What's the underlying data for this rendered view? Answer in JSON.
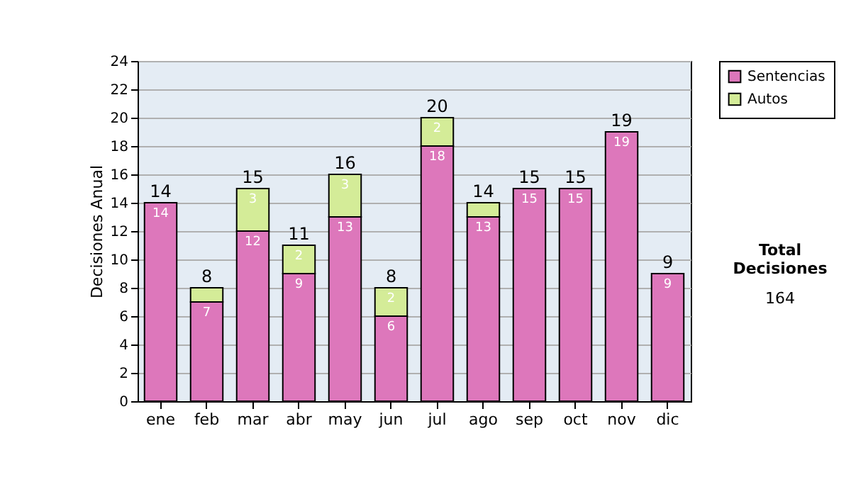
{
  "chart_data": {
    "type": "bar",
    "stacked": true,
    "categories": [
      "ene",
      "feb",
      "mar",
      "abr",
      "may",
      "jun",
      "jul",
      "ago",
      "sep",
      "oct",
      "nov",
      "dic"
    ],
    "ylabel": "Decisiones Anual",
    "series": [
      {
        "name": "Sentencias",
        "color": "#dd77bb",
        "values": [
          14,
          7,
          12,
          9,
          13,
          6,
          18,
          13,
          15,
          15,
          19,
          9
        ],
        "value_labels": [
          "14",
          "7",
          "12",
          "9",
          "13",
          "6",
          "18",
          "13",
          "15",
          "15",
          "19",
          "9"
        ]
      },
      {
        "name": "Autos",
        "color": "#d4ec98",
        "values": [
          0,
          1,
          3,
          2,
          3,
          2,
          2,
          1,
          0,
          0,
          0,
          0
        ],
        "value_labels": [
          null,
          null,
          "3",
          "2",
          "3",
          "2",
          "2",
          null,
          null,
          null,
          null,
          null
        ]
      }
    ],
    "totals": [
      "14",
      "8",
      "15",
      "11",
      "16",
      "8",
      "20",
      "14",
      "15",
      "15",
      "19",
      "9"
    ],
    "ylim": [
      0,
      24
    ],
    "yticks": [
      0,
      2,
      4,
      6,
      8,
      10,
      12,
      14,
      16,
      18,
      20,
      22,
      24
    ],
    "grid": "y",
    "legend": "right",
    "annotations": [
      "Total Decisiones",
      "164"
    ]
  }
}
